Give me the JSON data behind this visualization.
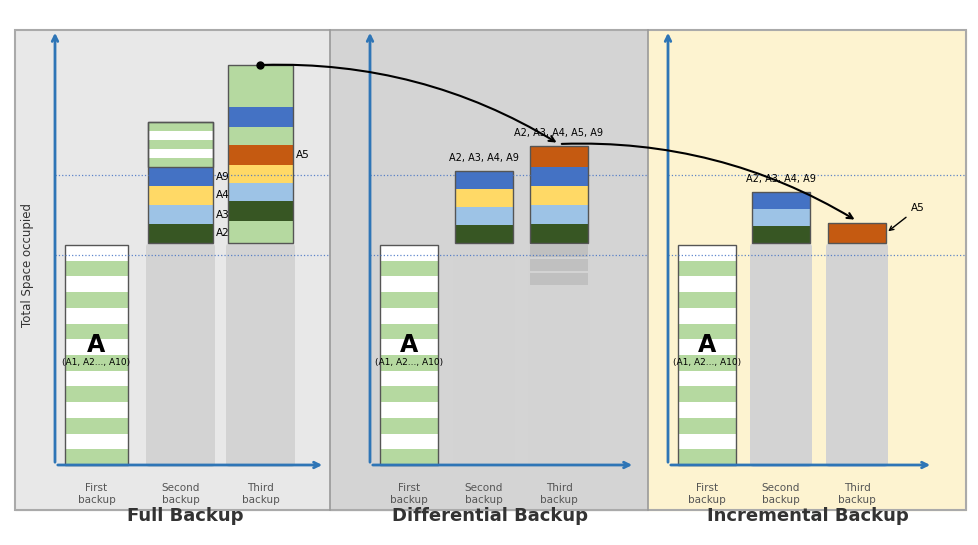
{
  "bg_full": "#e8e8e8",
  "bg_diff": "#d4d4d4",
  "bg_incr": "#fdf3d0",
  "border_color": "#aaaaaa",
  "divider_color": "#999999",
  "stripe_green": "#b5d9a0",
  "stripe_white": "#ffffff",
  "gray_rounded": "#d3d3d3",
  "blue": "#4472c4",
  "yellow": "#ffd966",
  "light_blue": "#9dc3e6",
  "dark_green": "#375623",
  "orange": "#c55a11",
  "axis_color": "#2e75b6",
  "dotted_color": "#4472c4",
  "text_dark": "#333333",
  "title_full": "Full Backup",
  "title_diff": "Differential Backup",
  "title_incr": "Incremental Backup",
  "ylabel": "Total Space occupied",
  "section_title_fontsize": 13,
  "label_fontsize": 8.5,
  "small_fontsize": 7.5,
  "tiny_fontsize": 7
}
